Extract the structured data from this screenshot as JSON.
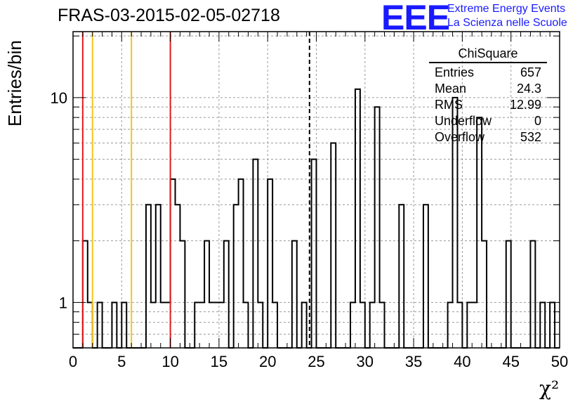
{
  "title": "FRAS-03-2015-02-05-02718",
  "logo": {
    "text": "EEE",
    "line1": "Extreme Energy Events",
    "line2": "La Scienza nelle Scuole"
  },
  "stats_box": {
    "title": "ChiSquare",
    "rows": [
      {
        "label": "Entries",
        "value": "657"
      },
      {
        "label": "Mean",
        "value": "24.3"
      },
      {
        "label": "RMS",
        "value": "12.99"
      },
      {
        "label": "Underflow",
        "value": "0"
      },
      {
        "label": "Overflow",
        "value": "532"
      }
    ]
  },
  "chart_data": {
    "type": "histogram",
    "title": "FRAS-03-2015-02-05-02718",
    "xlabel": "χ²",
    "ylabel": "Entries/bin",
    "xlim": [
      0,
      50
    ],
    "ylim": [
      0.6,
      21
    ],
    "yscale": "log",
    "bin_width": 0.5,
    "x_ticks": [
      0,
      5,
      10,
      15,
      20,
      25,
      30,
      35,
      40,
      45,
      50
    ],
    "y_tick_labels": [
      1,
      10
    ],
    "grid": true,
    "bins": [
      {
        "x": 1.0,
        "y": 2
      },
      {
        "x": 1.5,
        "y": 1
      },
      {
        "x": 2.5,
        "y": 1
      },
      {
        "x": 4.0,
        "y": 1
      },
      {
        "x": 5.0,
        "y": 1
      },
      {
        "x": 7.5,
        "y": 3
      },
      {
        "x": 8.0,
        "y": 1
      },
      {
        "x": 8.5,
        "y": 3
      },
      {
        "x": 9.0,
        "y": 1
      },
      {
        "x": 9.5,
        "y": 1
      },
      {
        "x": 10.0,
        "y": 4
      },
      {
        "x": 10.5,
        "y": 3
      },
      {
        "x": 11.0,
        "y": 2
      },
      {
        "x": 12.5,
        "y": 1
      },
      {
        "x": 13.0,
        "y": 1
      },
      {
        "x": 13.5,
        "y": 2
      },
      {
        "x": 14.0,
        "y": 1
      },
      {
        "x": 14.5,
        "y": 1
      },
      {
        "x": 15.0,
        "y": 1
      },
      {
        "x": 15.5,
        "y": 2
      },
      {
        "x": 16.5,
        "y": 3
      },
      {
        "x": 17.0,
        "y": 4
      },
      {
        "x": 17.5,
        "y": 1
      },
      {
        "x": 18.5,
        "y": 5
      },
      {
        "x": 19.0,
        "y": 1
      },
      {
        "x": 20.0,
        "y": 4
      },
      {
        "x": 20.5,
        "y": 1
      },
      {
        "x": 22.5,
        "y": 2
      },
      {
        "x": 23.5,
        "y": 1
      },
      {
        "x": 24.5,
        "y": 5
      },
      {
        "x": 26.5,
        "y": 6
      },
      {
        "x": 28.5,
        "y": 1
      },
      {
        "x": 29.0,
        "y": 11
      },
      {
        "x": 29.5,
        "y": 1
      },
      {
        "x": 30.5,
        "y": 1
      },
      {
        "x": 31.0,
        "y": 9
      },
      {
        "x": 31.5,
        "y": 1
      },
      {
        "x": 33.5,
        "y": 3
      },
      {
        "x": 36.0,
        "y": 3
      },
      {
        "x": 38.5,
        "y": 1
      },
      {
        "x": 39.0,
        "y": 10
      },
      {
        "x": 39.5,
        "y": 1
      },
      {
        "x": 40.5,
        "y": 1
      },
      {
        "x": 41.0,
        "y": 1
      },
      {
        "x": 41.5,
        "y": 8
      },
      {
        "x": 42.0,
        "y": 2
      },
      {
        "x": 44.5,
        "y": 2
      },
      {
        "x": 47.0,
        "y": 2
      },
      {
        "x": 48.0,
        "y": 1
      },
      {
        "x": 49.0,
        "y": 1
      }
    ],
    "vertical_lines": [
      {
        "x": 1,
        "color": "#e31a1c",
        "style": "solid"
      },
      {
        "x": 2,
        "color": "#f5c518",
        "style": "solid"
      },
      {
        "x": 6,
        "color": "#f5c518",
        "style": "solid"
      },
      {
        "x": 10,
        "color": "#e31a1c",
        "style": "solid"
      },
      {
        "x": 24.3,
        "color": "#000000",
        "style": "dashed"
      }
    ]
  }
}
